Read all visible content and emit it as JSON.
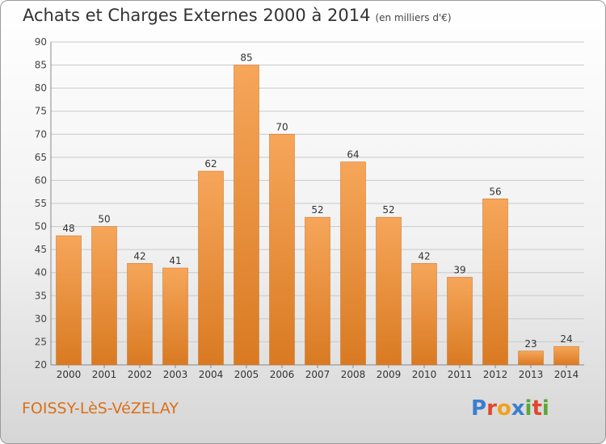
{
  "header": {
    "title": "Achats et Charges Externes 2000 à 2014",
    "unit": "(en milliers d'€)"
  },
  "footer": {
    "city": "FOISSY-LèS-VéZELAY",
    "brand": "Proxiti"
  },
  "colors": {
    "bar_light": "#f6a65a",
    "bar_dark": "#d97a22",
    "city_text": "#d9701a"
  },
  "chart_data": {
    "type": "bar",
    "categories": [
      "2000",
      "2001",
      "2002",
      "2003",
      "2004",
      "2005",
      "2006",
      "2007",
      "2008",
      "2009",
      "2010",
      "2011",
      "2012",
      "2013",
      "2014"
    ],
    "values": [
      48,
      50,
      42,
      41,
      62,
      85,
      70,
      52,
      64,
      52,
      42,
      39,
      56,
      23,
      24
    ],
    "ylim": [
      20,
      90
    ],
    "yticks": [
      20,
      25,
      30,
      35,
      40,
      45,
      50,
      55,
      60,
      65,
      70,
      75,
      80,
      85,
      90
    ],
    "grid": true
  }
}
